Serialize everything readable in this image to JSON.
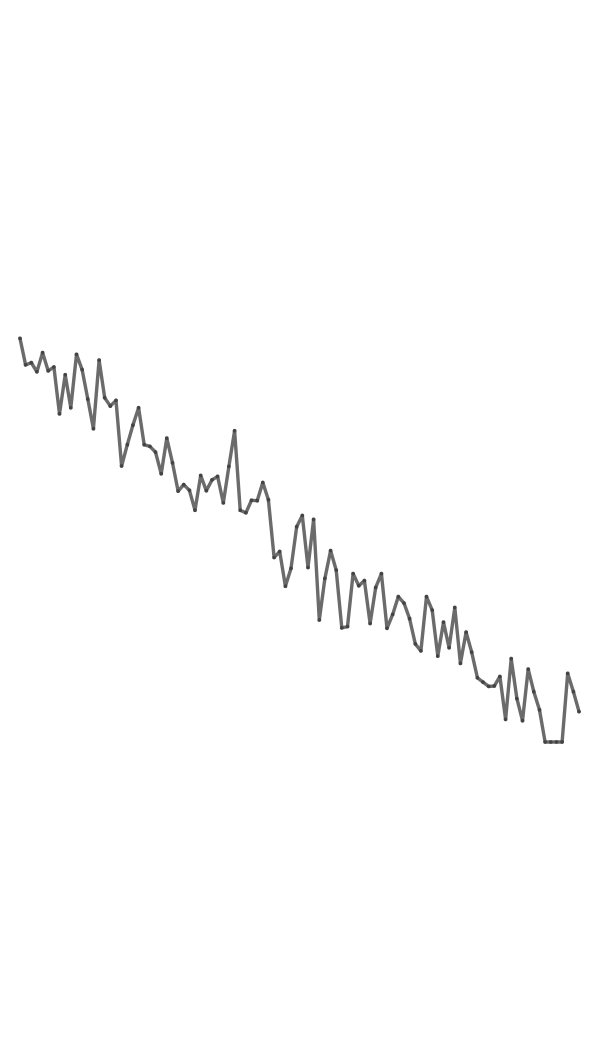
{
  "chart_data": {
    "type": "line",
    "title": "",
    "xlabel": "",
    "ylabel": "",
    "grid": false,
    "axes_visible": false,
    "legend": "none",
    "xlim": [
      0,
      99
    ],
    "ylim": [
      0,
      100
    ],
    "series": [
      {
        "color": "#6b6b6b",
        "x": [
          0,
          1,
          2,
          3,
          4,
          5,
          6,
          7,
          8,
          9,
          10,
          11,
          12,
          13,
          14,
          15,
          16,
          17,
          18,
          19,
          20,
          21,
          22,
          23,
          24,
          25,
          26,
          27,
          28,
          29,
          30,
          31,
          32,
          33,
          34,
          35,
          36,
          37,
          38,
          39,
          40,
          41,
          42,
          43,
          44,
          45,
          46,
          47,
          48,
          49,
          50,
          51,
          52,
          53,
          54,
          55,
          56,
          57,
          58,
          59,
          60,
          61,
          62,
          63,
          64,
          65,
          66,
          67,
          68,
          69,
          70,
          71,
          72,
          73,
          74,
          75,
          76,
          77,
          78,
          79,
          80,
          81,
          82,
          83,
          84,
          85,
          86,
          87,
          88,
          89,
          90,
          91,
          92,
          93,
          94,
          95,
          96,
          97,
          98,
          99
        ],
        "values": [
          93.0,
          86.9,
          87.4,
          85.3,
          89.7,
          85.5,
          86.4,
          75.6,
          84.6,
          77.0,
          89.3,
          85.8,
          79.0,
          72.2,
          88.0,
          79.3,
          77.4,
          78.7,
          63.6,
          68.5,
          73.0,
          77.0,
          68.5,
          68.1,
          66.8,
          61.8,
          70.0,
          64.3,
          57.8,
          59.3,
          58.0,
          53.4,
          61.4,
          57.9,
          60.4,
          61.2,
          55.1,
          63.5,
          71.7,
          53.4,
          52.8,
          55.7,
          55.6,
          59.8,
          55.8,
          42.5,
          43.9,
          35.9,
          40.0,
          49.6,
          52.2,
          40.2,
          51.3,
          28.1,
          37.7,
          44.1,
          39.6,
          26.3,
          26.6,
          38.8,
          36.0,
          37.2,
          27.3,
          35.6,
          38.8,
          26.2,
          29.4,
          33.5,
          32.0,
          28.4,
          22.6,
          21.0,
          33.5,
          30.4,
          19.8,
          27.6,
          21.7,
          31.0,
          18.1,
          25.3,
          20.7,
          14.8,
          13.8,
          12.8,
          12.9,
          15.1,
          5.2,
          19.2,
          10.0,
          4.9,
          16.8,
          11.6,
          7.4,
          0.0,
          0.0,
          0.0,
          0.0,
          15.8,
          11.6,
          7.0
        ]
      }
    ]
  }
}
